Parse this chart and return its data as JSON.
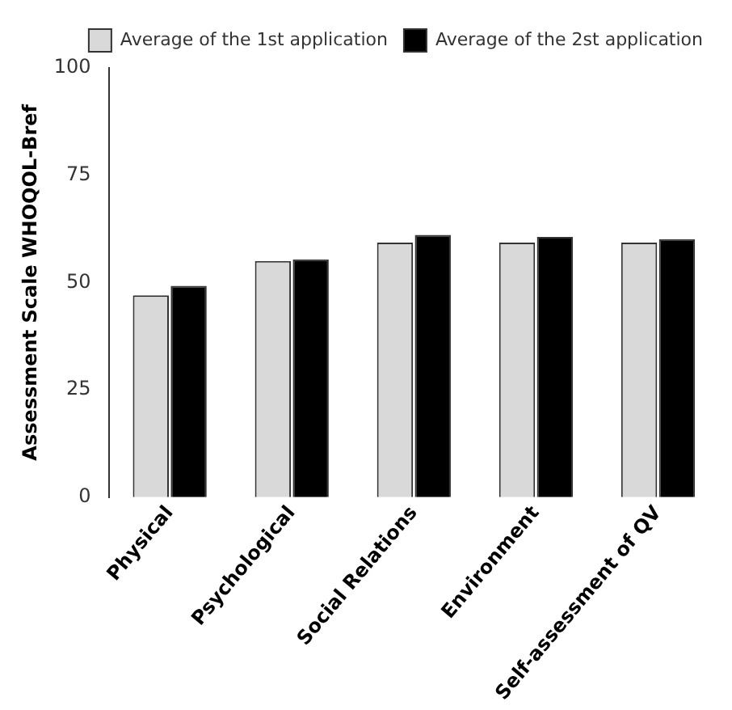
{
  "chart_data": {
    "type": "bar",
    "ylabel": "Assessment Scale WHOQOL-Bref",
    "categories": [
      "Physical",
      "Psychological",
      "Social Relations",
      "Environment",
      "Self-assessment of QV"
    ],
    "series": [
      {
        "name": "Average of the 1st application",
        "color": "#d9d9d9",
        "values": [
          47,
          55,
          59.3,
          59.3,
          59.3
        ]
      },
      {
        "name": "Average of the 2st application",
        "color": "#000000",
        "values": [
          49.2,
          55.4,
          61.1,
          60.6,
          60.1
        ]
      }
    ],
    "ylim": [
      0,
      100
    ],
    "yticks": [
      0,
      25,
      50,
      75,
      100
    ],
    "grid": false,
    "legend": "top right"
  }
}
